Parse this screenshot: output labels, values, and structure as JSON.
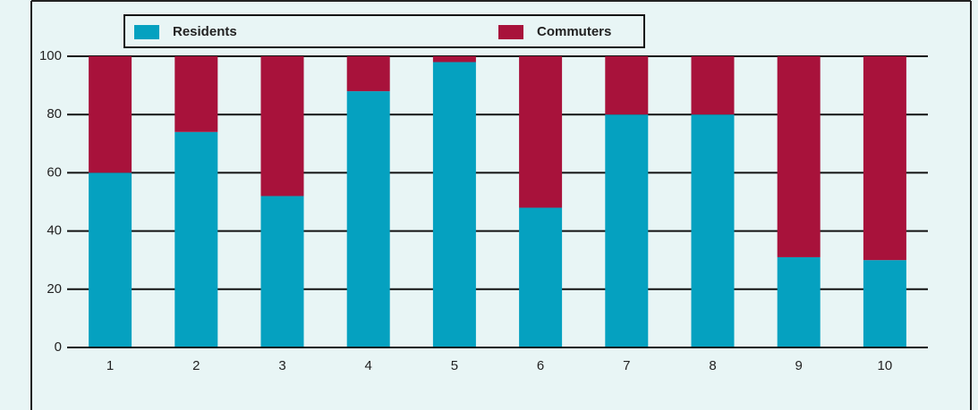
{
  "chart_data": {
    "type": "stacked_bar",
    "categories": [
      "1",
      "2",
      "3",
      "4",
      "5",
      "6",
      "7",
      "8",
      "9",
      "10"
    ],
    "series": [
      {
        "name": "Residents",
        "color": "#05a1c0",
        "values": [
          60,
          74,
          52,
          88,
          98,
          48,
          80,
          80,
          31,
          30
        ]
      },
      {
        "name": "Commuters",
        "color": "#a8123b",
        "values": [
          40,
          26,
          48,
          12,
          2,
          52,
          20,
          20,
          69,
          70
        ]
      }
    ],
    "ylim": [
      0,
      100
    ],
    "yticks": [
      0,
      20,
      40,
      60,
      80,
      100
    ],
    "grid": true
  }
}
